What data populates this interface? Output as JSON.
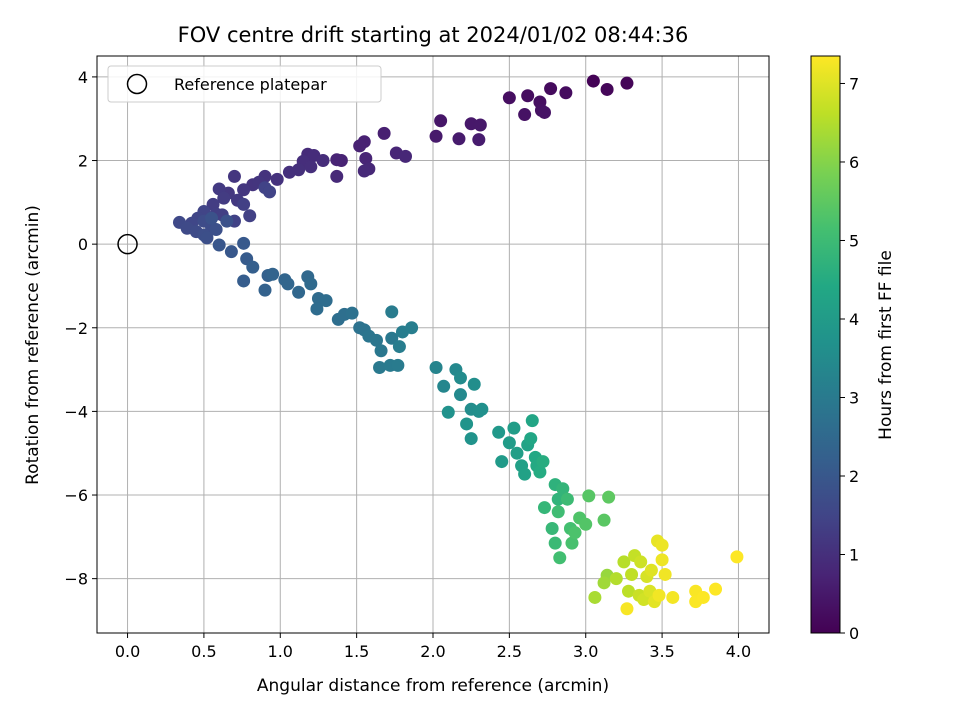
{
  "chart_data": {
    "type": "scatter",
    "title": "FOV centre drift starting at 2024/01/02 08:44:36",
    "xlabel": "Angular distance from reference (arcmin)",
    "ylabel": "Rotation from reference (arcmin)",
    "xlim": [
      -0.2,
      4.2
    ],
    "ylim": [
      -9.3,
      4.5
    ],
    "xticks": [
      "0.0",
      "0.5",
      "1.0",
      "1.5",
      "2.0",
      "2.5",
      "3.0",
      "3.5",
      "4.0"
    ],
    "yticks": [
      "−8",
      "−6",
      "−4",
      "−2",
      "0",
      "2",
      "4"
    ],
    "grid": true,
    "legend": {
      "placement": "top-left",
      "entries": [
        "Reference platepar"
      ]
    },
    "reference_point": [
      0,
      0
    ],
    "colorbar": {
      "label": "Hours from first FF file",
      "colormap": "viridis",
      "range": [
        0,
        7.35
      ],
      "ticks": [
        "0",
        "1",
        "2",
        "3",
        "4",
        "5",
        "6",
        "7"
      ]
    },
    "points": [
      [
        3.05,
        3.9,
        0.05
      ],
      [
        3.27,
        3.85,
        0.1
      ],
      [
        3.14,
        3.7,
        0.12
      ],
      [
        2.77,
        3.72,
        0.2
      ],
      [
        2.87,
        3.62,
        0.22
      ],
      [
        2.62,
        3.55,
        0.25
      ],
      [
        2.5,
        3.5,
        0.28
      ],
      [
        2.7,
        3.4,
        0.3
      ],
      [
        2.71,
        3.2,
        0.33
      ],
      [
        2.6,
        3.1,
        0.35
      ],
      [
        2.73,
        3.15,
        0.37
      ],
      [
        2.05,
        2.95,
        0.45
      ],
      [
        2.25,
        2.88,
        0.48
      ],
      [
        2.31,
        2.85,
        0.5
      ],
      [
        2.02,
        2.58,
        0.52
      ],
      [
        2.17,
        2.52,
        0.55
      ],
      [
        2.3,
        2.5,
        0.57
      ],
      [
        1.68,
        2.65,
        0.65
      ],
      [
        1.55,
        2.45,
        0.68
      ],
      [
        1.52,
        2.35,
        0.7
      ],
      [
        1.4,
        2.0,
        0.72
      ],
      [
        1.37,
        2.02,
        0.74
      ],
      [
        1.56,
        2.05,
        0.76
      ],
      [
        1.76,
        2.18,
        0.78
      ],
      [
        1.82,
        2.1,
        0.8
      ],
      [
        1.58,
        1.8,
        0.82
      ],
      [
        1.55,
        1.75,
        0.84
      ],
      [
        1.37,
        1.62,
        0.86
      ],
      [
        1.18,
        2.15,
        0.9
      ],
      [
        1.22,
        2.12,
        0.92
      ],
      [
        1.28,
        2.0,
        0.94
      ],
      [
        1.15,
        1.98,
        0.96
      ],
      [
        1.2,
        1.85,
        0.98
      ],
      [
        1.12,
        1.78,
        1.0
      ],
      [
        1.06,
        1.72,
        1.02
      ],
      [
        0.98,
        1.55,
        1.05
      ],
      [
        0.9,
        1.62,
        1.08
      ],
      [
        0.82,
        1.42,
        1.1
      ],
      [
        0.86,
        1.48,
        1.12
      ],
      [
        0.7,
        1.62,
        1.15
      ],
      [
        0.76,
        1.3,
        1.18
      ],
      [
        0.66,
        1.22,
        1.2
      ],
      [
        0.72,
        1.05,
        1.22
      ],
      [
        0.6,
        1.32,
        1.25
      ],
      [
        0.63,
        1.1,
        1.28
      ],
      [
        0.56,
        0.95,
        1.3
      ],
      [
        0.58,
        0.72,
        1.33
      ],
      [
        0.62,
        0.7,
        1.36
      ],
      [
        0.76,
        0.95,
        1.38
      ],
      [
        0.8,
        0.68,
        1.4
      ],
      [
        0.7,
        0.55,
        1.43
      ],
      [
        0.9,
        1.35,
        1.45
      ],
      [
        0.93,
        1.25,
        1.48
      ],
      [
        0.5,
        0.78,
        1.5
      ],
      [
        0.46,
        0.62,
        1.53
      ],
      [
        0.42,
        0.5,
        1.56
      ],
      [
        0.34,
        0.52,
        1.6
      ],
      [
        0.39,
        0.38,
        1.62
      ],
      [
        0.45,
        0.3,
        1.65
      ],
      [
        0.5,
        0.55,
        1.68
      ],
      [
        0.55,
        0.4,
        1.7
      ],
      [
        0.5,
        0.22,
        1.73
      ],
      [
        0.52,
        0.15,
        1.76
      ],
      [
        0.58,
        0.35,
        1.8
      ],
      [
        0.65,
        0.55,
        1.83
      ],
      [
        0.55,
        0.62,
        1.86
      ],
      [
        0.6,
        -0.02,
        1.95
      ],
      [
        0.68,
        -0.18,
        2.0
      ],
      [
        0.76,
        0.02,
        2.05
      ],
      [
        0.78,
        -0.35,
        2.1
      ],
      [
        0.76,
        -0.88,
        2.15
      ],
      [
        0.82,
        -0.55,
        2.2
      ],
      [
        0.92,
        -0.75,
        2.25
      ],
      [
        0.9,
        -1.1,
        2.3
      ],
      [
        0.95,
        -0.72,
        2.35
      ],
      [
        1.03,
        -0.85,
        2.38
      ],
      [
        1.05,
        -0.95,
        2.42
      ],
      [
        1.12,
        -1.15,
        2.45
      ],
      [
        1.18,
        -0.78,
        2.48
      ],
      [
        1.2,
        -0.95,
        2.52
      ],
      [
        1.25,
        -1.3,
        2.55
      ],
      [
        1.24,
        -1.55,
        2.58
      ],
      [
        1.3,
        -1.35,
        2.62
      ],
      [
        1.38,
        -1.8,
        2.65
      ],
      [
        1.42,
        -1.68,
        2.68
      ],
      [
        1.47,
        -1.65,
        2.72
      ],
      [
        1.52,
        -2.0,
        2.76
      ],
      [
        1.55,
        -2.05,
        2.8
      ],
      [
        1.58,
        -2.2,
        2.84
      ],
      [
        1.63,
        -2.3,
        2.88
      ],
      [
        1.66,
        -2.55,
        2.92
      ],
      [
        1.73,
        -2.25,
        2.95
      ],
      [
        1.65,
        -2.95,
        2.98
      ],
      [
        1.72,
        -2.9,
        3.0
      ],
      [
        1.77,
        -2.9,
        3.02
      ],
      [
        1.73,
        -1.62,
        3.05
      ],
      [
        1.78,
        -2.45,
        3.08
      ],
      [
        1.8,
        -2.1,
        3.1
      ],
      [
        1.86,
        -2.0,
        3.12
      ],
      [
        2.02,
        -2.95,
        3.3
      ],
      [
        2.07,
        -3.4,
        3.35
      ],
      [
        2.15,
        -3.0,
        3.4
      ],
      [
        2.18,
        -3.6,
        3.45
      ],
      [
        2.18,
        -3.2,
        3.5
      ],
      [
        2.25,
        -3.95,
        3.55
      ],
      [
        2.27,
        -3.35,
        3.58
      ],
      [
        2.3,
        -4.0,
        3.62
      ],
      [
        2.32,
        -3.95,
        3.66
      ],
      [
        2.1,
        -4.02,
        3.7
      ],
      [
        2.25,
        -4.65,
        3.74
      ],
      [
        2.22,
        -4.3,
        3.78
      ],
      [
        2.43,
        -4.5,
        3.9
      ],
      [
        2.45,
        -5.2,
        3.95
      ],
      [
        2.5,
        -4.75,
        4.0
      ],
      [
        2.53,
        -4.4,
        4.05
      ],
      [
        2.55,
        -5.0,
        4.1
      ],
      [
        2.58,
        -5.3,
        4.15
      ],
      [
        2.6,
        -5.5,
        4.2
      ],
      [
        2.62,
        -4.8,
        4.25
      ],
      [
        2.65,
        -4.22,
        4.3
      ],
      [
        2.64,
        -4.65,
        4.35
      ],
      [
        2.67,
        -5.1,
        4.4
      ],
      [
        2.68,
        -5.3,
        4.45
      ],
      [
        2.7,
        -5.45,
        4.5
      ],
      [
        2.72,
        -5.2,
        4.55
      ],
      [
        2.8,
        -5.75,
        4.7
      ],
      [
        2.82,
        -6.1,
        4.75
      ],
      [
        2.85,
        -5.85,
        4.8
      ],
      [
        2.73,
        -6.3,
        4.85
      ],
      [
        2.78,
        -6.8,
        4.9
      ],
      [
        2.8,
        -7.15,
        4.95
      ],
      [
        2.88,
        -6.1,
        5.0
      ],
      [
        2.82,
        -6.4,
        5.05
      ],
      [
        2.83,
        -7.5,
        5.1
      ],
      [
        2.9,
        -6.8,
        5.15
      ],
      [
        2.91,
        -7.15,
        5.2
      ],
      [
        2.93,
        -6.9,
        5.25
      ],
      [
        2.96,
        -6.55,
        5.3
      ],
      [
        3.0,
        -6.7,
        5.35
      ],
      [
        3.02,
        -6.02,
        5.4
      ],
      [
        3.12,
        -6.6,
        5.45
      ],
      [
        3.15,
        -6.05,
        5.5
      ],
      [
        3.14,
        -7.92,
        6.2
      ],
      [
        3.12,
        -8.1,
        6.3
      ],
      [
        3.06,
        -8.45,
        6.4
      ],
      [
        3.2,
        -8.0,
        6.5
      ],
      [
        3.25,
        -7.6,
        6.55
      ],
      [
        3.28,
        -8.3,
        6.6
      ],
      [
        3.3,
        -7.9,
        6.65
      ],
      [
        3.32,
        -7.45,
        6.7
      ],
      [
        3.35,
        -8.4,
        6.75
      ],
      [
        3.36,
        -7.6,
        6.8
      ],
      [
        3.38,
        -8.5,
        6.85
      ],
      [
        3.4,
        -7.95,
        6.9
      ],
      [
        3.42,
        -8.3,
        6.95
      ],
      [
        3.43,
        -7.8,
        7.0
      ],
      [
        3.45,
        -8.55,
        7.05
      ],
      [
        3.47,
        -7.1,
        7.1
      ],
      [
        3.5,
        -7.2,
        7.15
      ],
      [
        3.5,
        -7.55,
        7.18
      ],
      [
        3.52,
        -7.9,
        7.2
      ],
      [
        3.48,
        -8.4,
        7.22
      ],
      [
        3.57,
        -8.45,
        7.25
      ],
      [
        3.27,
        -8.72,
        7.28
      ],
      [
        3.72,
        -8.3,
        7.3
      ],
      [
        3.72,
        -8.55,
        7.32
      ],
      [
        3.77,
        -8.45,
        7.34
      ],
      [
        3.85,
        -8.25,
        7.35
      ],
      [
        3.99,
        -7.48,
        7.35
      ]
    ]
  }
}
